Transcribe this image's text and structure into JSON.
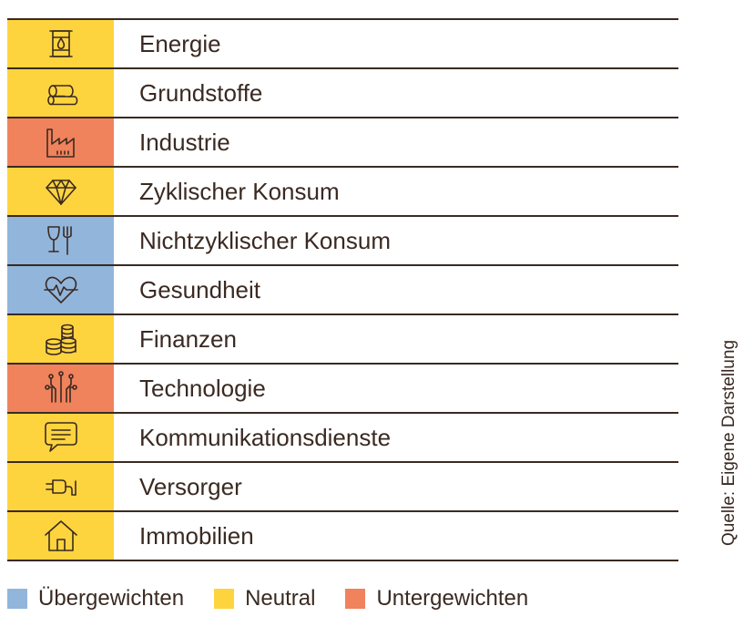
{
  "colors": {
    "overweight": "#92b5dc",
    "neutral": "#fdd43e",
    "underweight": "#f0825c",
    "ink": "#3a2a22"
  },
  "sectors": [
    {
      "label": "Energie",
      "rating": "neutral",
      "icon": "oil-barrel-icon"
    },
    {
      "label": "Grundstoffe",
      "rating": "neutral",
      "icon": "pipes-icon"
    },
    {
      "label": "Industrie",
      "rating": "underweight",
      "icon": "factory-icon"
    },
    {
      "label": "Zyklischer Konsum",
      "rating": "neutral",
      "icon": "diamond-icon"
    },
    {
      "label": "Nichtzyklischer Konsum",
      "rating": "overweight",
      "icon": "glass-fork-icon"
    },
    {
      "label": "Gesundheit",
      "rating": "overweight",
      "icon": "heart-pulse-icon"
    },
    {
      "label": "Finanzen",
      "rating": "neutral",
      "icon": "coins-icon"
    },
    {
      "label": "Technologie",
      "rating": "underweight",
      "icon": "circuit-icon"
    },
    {
      "label": "Kommunikationsdienste",
      "rating": "neutral",
      "icon": "chat-bubble-icon"
    },
    {
      "label": "Versorger",
      "rating": "neutral",
      "icon": "power-plug-icon"
    },
    {
      "label": "Immobilien",
      "rating": "neutral",
      "icon": "house-icon"
    }
  ],
  "legend": [
    {
      "label": "Übergewichten",
      "rating": "overweight"
    },
    {
      "label": "Neutral",
      "rating": "neutral"
    },
    {
      "label": "Untergewichten",
      "rating": "underweight"
    }
  ],
  "source_note": "Quelle: Eigene Darstellung"
}
